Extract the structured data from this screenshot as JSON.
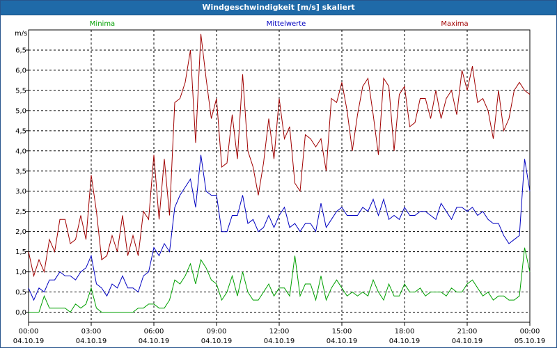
{
  "window": {
    "title": "Windgeschwindigkeit [m/s] skaliert"
  },
  "legend": [
    {
      "label": "Minima",
      "color": "#00a000"
    },
    {
      "label": "Mittelwerte",
      "color": "#0000c0"
    },
    {
      "label": "Maxima",
      "color": "#a00000"
    }
  ],
  "chart_data": {
    "type": "line",
    "title": "Windgeschwindigkeit [m/s] skaliert",
    "ylabel": "m/s",
    "ylim": [
      -0.25,
      7.0
    ],
    "xlim_hours": [
      0,
      24
    ],
    "grid": true,
    "legend_position": "top",
    "ytick_labels": [
      "0,0",
      "0,5",
      "1,0",
      "1,5",
      "2,0",
      "2,5",
      "3,0",
      "3,5",
      "4,0",
      "4,5",
      "5,0",
      "5,5",
      "6,0",
      "6,5"
    ],
    "yticks": [
      0,
      0.5,
      1,
      1.5,
      2,
      2.5,
      3,
      3.5,
      4,
      4.5,
      5,
      5.5,
      6,
      6.5
    ],
    "xtick_labels": [
      {
        "time": "00:00",
        "date": "04.10.19"
      },
      {
        "time": "03:00",
        "date": "04.10.19"
      },
      {
        "time": "06:00",
        "date": "04.10.19"
      },
      {
        "time": "09:00",
        "date": "04.10.19"
      },
      {
        "time": "12:00",
        "date": "04.10.19"
      },
      {
        "time": "15:00",
        "date": "04.10.19"
      },
      {
        "time": "18:00",
        "date": "04.10.19"
      },
      {
        "time": "21:00",
        "date": "04.10.19"
      },
      {
        "time": "00:00",
        "date": "05.10.19"
      }
    ],
    "x_hours": [
      0,
      0.25,
      0.5,
      0.75,
      1,
      1.25,
      1.5,
      1.75,
      2,
      2.25,
      2.5,
      2.75,
      3,
      3.25,
      3.5,
      3.75,
      4,
      4.25,
      4.5,
      4.75,
      5,
      5.25,
      5.5,
      5.75,
      6,
      6.25,
      6.5,
      6.75,
      7,
      7.25,
      7.5,
      7.75,
      8,
      8.25,
      8.5,
      8.75,
      9,
      9.25,
      9.5,
      9.75,
      10,
      10.25,
      10.5,
      10.75,
      11,
      11.25,
      11.5,
      11.75,
      12,
      12.25,
      12.5,
      12.75,
      13,
      13.25,
      13.5,
      13.75,
      14,
      14.25,
      14.5,
      14.75,
      15,
      15.25,
      15.5,
      15.75,
      16,
      16.25,
      16.5,
      16.75,
      17,
      17.25,
      17.5,
      17.75,
      18,
      18.25,
      18.5,
      18.75,
      19,
      19.25,
      19.5,
      19.75,
      20,
      20.25,
      20.5,
      20.75,
      21,
      21.25,
      21.5,
      21.75,
      22,
      22.25,
      22.5,
      22.75,
      23,
      23.25,
      23.5,
      23.75,
      24
    ],
    "series": [
      {
        "name": "Maxima",
        "color": "#a00000",
        "values": [
          1.5,
          0.9,
          1.3,
          1.0,
          1.8,
          1.5,
          2.3,
          2.3,
          1.7,
          1.8,
          2.4,
          1.8,
          3.4,
          2.5,
          1.3,
          1.4,
          1.9,
          1.5,
          2.4,
          1.4,
          1.9,
          1.4,
          2.5,
          2.3,
          3.9,
          2.3,
          3.8,
          2.4,
          5.2,
          5.3,
          5.7,
          6.5,
          4.2,
          6.9,
          5.8,
          4.8,
          5.3,
          3.6,
          3.7,
          4.9,
          3.8,
          5.9,
          4.0,
          3.6,
          2.9,
          3.7,
          4.8,
          3.8,
          5.3,
          4.3,
          4.6,
          3.2,
          3.0,
          4.4,
          4.3,
          4.1,
          4.3,
          3.5,
          5.3,
          5.2,
          5.7,
          5.0,
          4.0,
          4.9,
          5.6,
          5.8,
          4.9,
          3.9,
          5.8,
          5.6,
          4.0,
          5.4,
          5.6,
          4.6,
          4.7,
          5.3,
          5.3,
          4.8,
          5.5,
          4.8,
          5.3,
          5.5,
          4.9,
          6.0,
          5.5,
          6.1,
          5.2,
          5.3,
          5.0,
          4.3,
          5.5,
          4.5,
          4.8,
          5.5,
          5.7,
          5.5,
          5.4
        ],
        "_note_shape": ""
      },
      {
        "name": "Mittelwerte",
        "color": "#0000c0",
        "values": [
          0.6,
          0.3,
          0.6,
          0.5,
          0.8,
          0.8,
          1.0,
          0.9,
          0.9,
          0.8,
          1.0,
          1.1,
          1.4,
          0.7,
          0.6,
          0.4,
          0.7,
          0.6,
          0.9,
          0.6,
          0.6,
          0.5,
          0.9,
          1.0,
          1.6,
          1.4,
          1.7,
          1.5,
          2.6,
          2.9,
          3.1,
          3.3,
          2.6,
          3.9,
          3.0,
          2.9,
          2.9,
          2.0,
          2.0,
          2.4,
          2.4,
          2.9,
          2.2,
          2.3,
          2.0,
          2.1,
          2.4,
          2.1,
          2.4,
          2.6,
          2.1,
          2.2,
          2.0,
          2.2,
          2.2,
          2.0,
          2.7,
          2.1,
          2.3,
          2.5,
          2.6,
          2.4,
          2.4,
          2.4,
          2.6,
          2.5,
          2.8,
          2.4,
          2.8,
          2.3,
          2.4,
          2.3,
          2.6,
          2.4,
          2.4,
          2.5,
          2.5,
          2.4,
          2.3,
          2.7,
          2.5,
          2.3,
          2.6,
          2.6,
          2.5,
          2.6,
          2.4,
          2.5,
          2.3,
          2.2,
          2.2,
          1.9,
          1.7,
          1.8,
          1.9,
          3.8,
          3.0
        ],
        "_note_shape": ""
      },
      {
        "name": "Minima",
        "color": "#00a000",
        "values": [
          0.0,
          0.0,
          0.0,
          0.4,
          0.1,
          0.1,
          0.1,
          0.1,
          0.0,
          0.2,
          0.1,
          0.2,
          0.6,
          0.1,
          0.0,
          0.0,
          0.0,
          0.0,
          0.0,
          0.0,
          0.0,
          0.1,
          0.1,
          0.2,
          0.2,
          0.1,
          0.1,
          0.3,
          0.8,
          0.7,
          0.9,
          1.2,
          0.7,
          1.3,
          1.1,
          0.8,
          0.7,
          0.3,
          0.5,
          0.9,
          0.4,
          1.0,
          0.5,
          0.3,
          0.3,
          0.5,
          0.7,
          0.4,
          0.6,
          0.6,
          0.4,
          1.4,
          0.4,
          0.7,
          0.7,
          0.3,
          0.9,
          0.3,
          0.6,
          0.8,
          0.6,
          0.4,
          0.5,
          0.4,
          0.5,
          0.4,
          0.8,
          0.5,
          0.3,
          0.7,
          0.4,
          0.4,
          0.7,
          0.5,
          0.5,
          0.6,
          0.4,
          0.5,
          0.5,
          0.5,
          0.4,
          0.6,
          0.5,
          0.5,
          0.7,
          0.8,
          0.6,
          0.4,
          0.5,
          0.3,
          0.4,
          0.4,
          0.3,
          0.3,
          0.4,
          1.6,
          1.0
        ],
        "_note_shape": ""
      }
    ]
  }
}
